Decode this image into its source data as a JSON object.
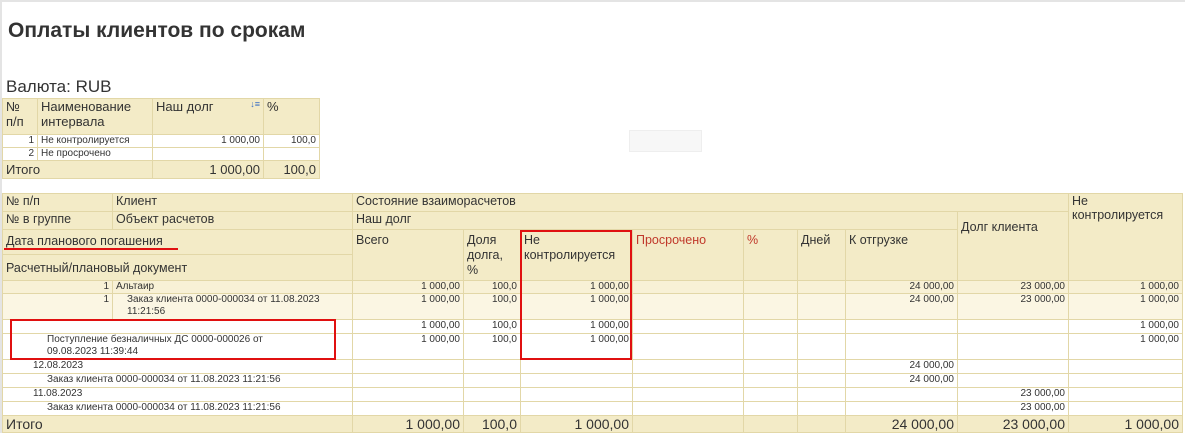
{
  "title": "Оплаты клиентов по срокам",
  "currency": "Валюта: RUB",
  "summary": {
    "headers": [
      "№ п/п",
      "Наименование интервала",
      "Наш долг",
      "%"
    ],
    "rows": [
      {
        "n": "1",
        "name": "Не контролируется",
        "debt": "1 000,00",
        "pct": "100,0"
      },
      {
        "n": "2",
        "name": "Не просрочено",
        "debt": "",
        "pct": ""
      }
    ],
    "total": {
      "label": "Итого",
      "debt": "1 000,00",
      "pct": "100,0"
    },
    "sort_icon": "sort-descending-icon"
  },
  "report": {
    "headers": {
      "num": "№ п/п",
      "client": "Клиент",
      "state": "Состояние взаиморасчетов",
      "uncontrolled_right": "Не контролируется",
      "group_num": "№ в группе",
      "object": "Объект расчетов",
      "our_debt": "Наш долг",
      "client_debt": "Долг клиента",
      "plan_date": "Дата планового погашения",
      "total": "Всего",
      "share": "Доля долга, %",
      "uncontrolled": "Не контролируется",
      "overdue": "Просрочено",
      "pct": "%",
      "days": "Дней",
      "to_ship": "К отгрузке",
      "doc": "Расчетный/плановый документ"
    },
    "rows": [
      {
        "num": "1",
        "text": "Альтаир",
        "total": "1 000,00",
        "share": "100,0",
        "unc": "1 000,00",
        "overdue": "",
        "pct": "",
        "days": "",
        "ship": "24 000,00",
        "cdebt": "23 000,00",
        "unc2": "1 000,00"
      },
      {
        "num": "1",
        "text": "Заказ клиента 0000-000034 от 11.08.2023 11:21:56",
        "total": "1 000,00",
        "share": "100,0",
        "unc": "1 000,00",
        "overdue": "",
        "pct": "",
        "days": "",
        "ship": "24 000,00",
        "cdebt": "23 000,00",
        "unc2": "1 000,00"
      },
      {
        "num": "",
        "text": "",
        "total": "1 000,00",
        "share": "100,0",
        "unc": "1 000,00",
        "overdue": "",
        "pct": "",
        "days": "",
        "ship": "",
        "cdebt": "",
        "unc2": "1 000,00"
      },
      {
        "num": "",
        "text": "Поступление безналичных ДС 0000-000026 от 09.08.2023 11:39:44",
        "total": "1 000,00",
        "share": "100,0",
        "unc": "1 000,00",
        "overdue": "",
        "pct": "",
        "days": "",
        "ship": "",
        "cdebt": "",
        "unc2": "1 000,00"
      },
      {
        "num": "",
        "text": "12.08.2023",
        "total": "",
        "share": "",
        "unc": "",
        "overdue": "",
        "pct": "",
        "days": "",
        "ship": "24 000,00",
        "cdebt": "",
        "unc2": ""
      },
      {
        "num": "",
        "text": "Заказ клиента 0000-000034 от 11.08.2023 11:21:56",
        "total": "",
        "share": "",
        "unc": "",
        "overdue": "",
        "pct": "",
        "days": "",
        "ship": "24 000,00",
        "cdebt": "",
        "unc2": ""
      },
      {
        "num": "",
        "text": "11.08.2023",
        "total": "",
        "share": "",
        "unc": "",
        "overdue": "",
        "pct": "",
        "days": "",
        "ship": "",
        "cdebt": "23 000,00",
        "unc2": ""
      },
      {
        "num": "",
        "text": "Заказ клиента 0000-000034 от 11.08.2023 11:21:56",
        "total": "",
        "share": "",
        "unc": "",
        "overdue": "",
        "pct": "",
        "days": "",
        "ship": "",
        "cdebt": "23 000,00",
        "unc2": ""
      }
    ],
    "totals": {
      "label": "Итого",
      "total": "1 000,00",
      "share": "100,0",
      "unc": "1 000,00",
      "overdue": "",
      "pct": "",
      "days": "",
      "ship": "24 000,00",
      "cdebt": "23 000,00",
      "unc2": "1 000,00"
    }
  },
  "colors": {
    "header_bg": "#f3ebc7",
    "border": "#e2d7a7",
    "highlight": "#e01010",
    "overdue_text": "#c0392b"
  }
}
